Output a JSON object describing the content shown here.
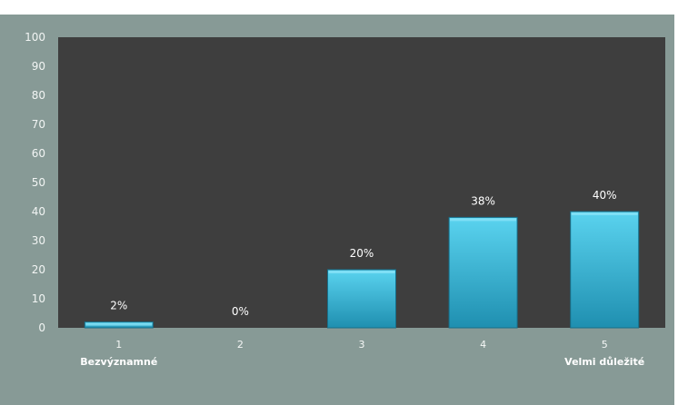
{
  "chart_data": {
    "type": "bar",
    "categories": [
      "1",
      "2",
      "3",
      "4",
      "5"
    ],
    "values": [
      2,
      0,
      20,
      38,
      40
    ],
    "data_labels": [
      "2%",
      "0%",
      "20%",
      "38%",
      "40%"
    ],
    "category_sublabels": [
      "Bezvýznamné",
      "",
      "",
      "",
      "Velmi důležité"
    ],
    "y_ticks": [
      "0",
      "10",
      "20",
      "30",
      "40",
      "50",
      "60",
      "70",
      "80",
      "90",
      "100"
    ],
    "ylim": [
      0,
      100
    ],
    "title": "",
    "xlabel": "",
    "ylabel": "",
    "grid": false,
    "legend": "none",
    "colors": {
      "outer_background": "#879a96",
      "plot_background": "#3e3e3e",
      "bar_top": "#5ad3ef",
      "bar_bottom": "#1f8fb0",
      "bar_edge": "#166f8a",
      "text": "#ffffff"
    }
  }
}
